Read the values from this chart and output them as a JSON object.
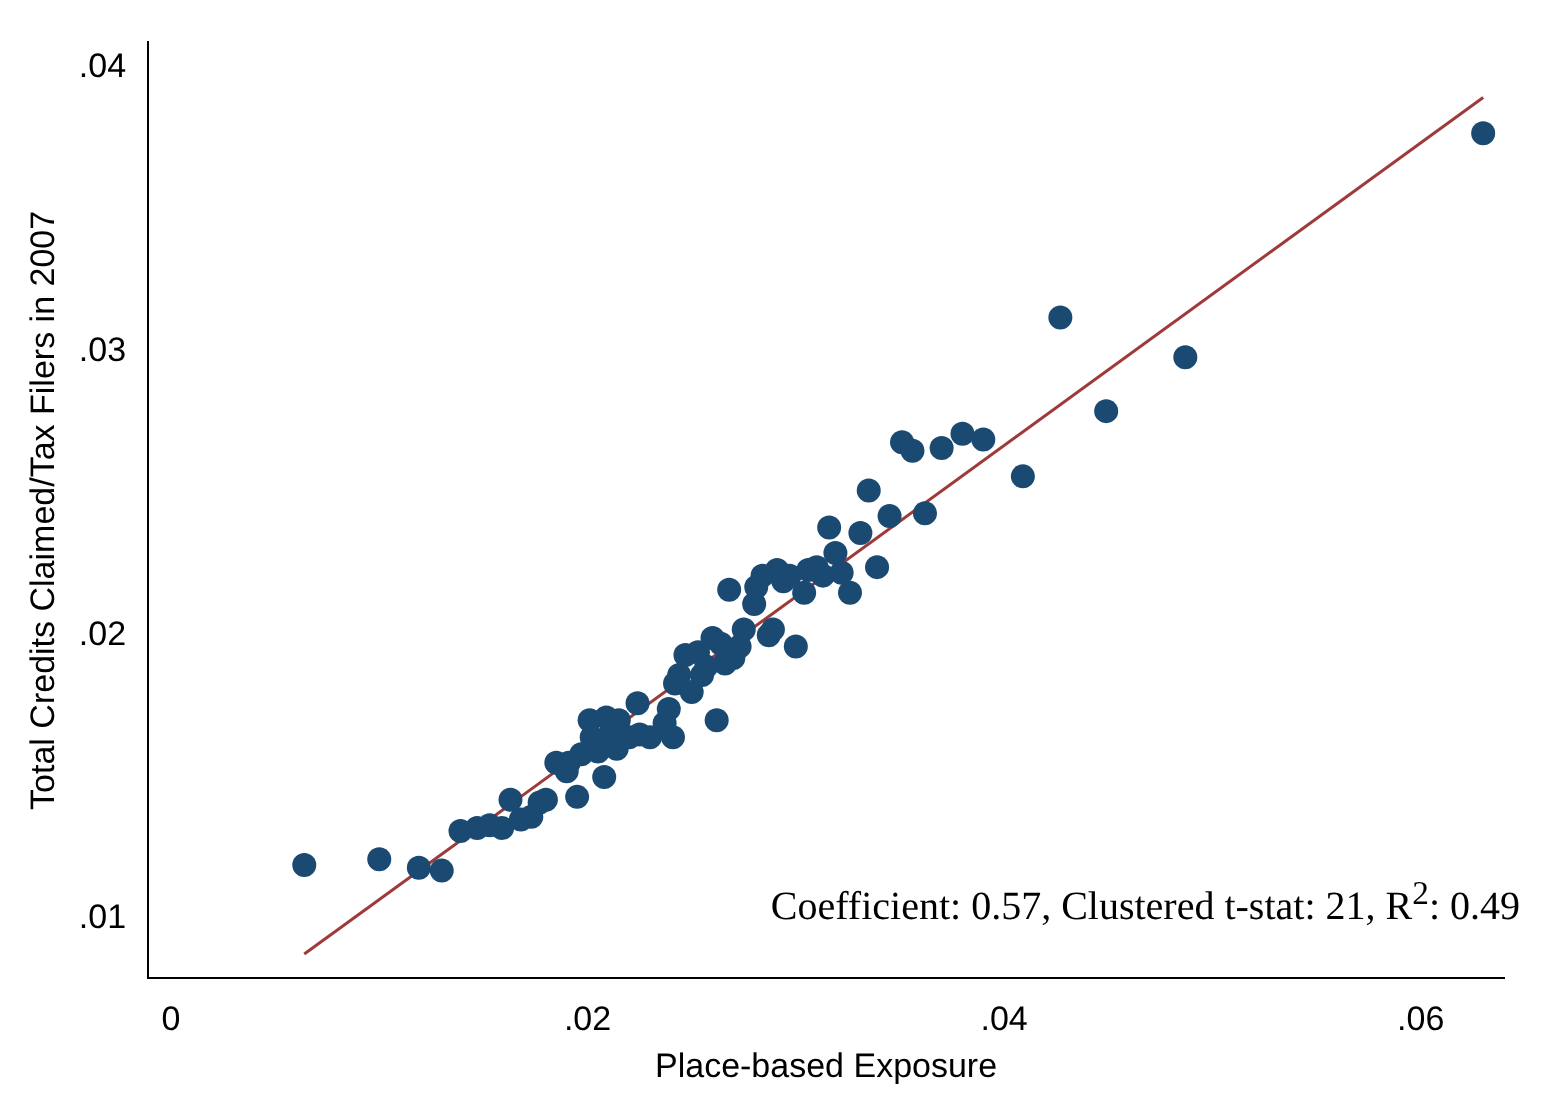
{
  "chart_data": {
    "type": "scatter",
    "xlabel": "Place-based Exposure",
    "ylabel": "Total Credits Claimed/Tax Filers in 2007",
    "xlim": [
      -0.0011,
      0.064
    ],
    "ylim": [
      0.0079,
      0.0409
    ],
    "xticks": [
      0,
      {
        "value": 0.02,
        "label": ".02"
      },
      {
        "value": 0.04,
        "label": ".04"
      },
      {
        "value": 0.06,
        "label": ".06"
      }
    ],
    "yticks": [
      {
        "value": 0.01,
        "label": ".01"
      },
      {
        "value": 0.02,
        "label": ".02"
      },
      {
        "value": 0.03,
        "label": ".03"
      },
      {
        "value": 0.04,
        "label": ".04"
      }
    ],
    "grid": false,
    "legend": false,
    "marker": "circle",
    "annotations": [
      "Coefficient: 0.57, Clustered t-stat: 21, R$^{2}$: 0.49"
    ],
    "series": [
      {
        "type": "scatter",
        "color": "#1a4a72",
        "x": [
          0.0064,
          0.01,
          0.0119,
          0.013,
          0.0139,
          0.0147,
          0.0153,
          0.0159,
          0.0163,
          0.0168,
          0.0173,
          0.0177,
          0.018,
          0.0185,
          0.019,
          0.0195,
          0.0191,
          0.0197,
          0.0201,
          0.0202,
          0.0205,
          0.0208,
          0.0209,
          0.0211,
          0.0215,
          0.0214,
          0.022,
          0.0224,
          0.0225,
          0.023,
          0.0237,
          0.0239,
          0.0241,
          0.0242,
          0.0244,
          0.0247,
          0.025,
          0.0253,
          0.0255,
          0.0257,
          0.026,
          0.0262,
          0.0264,
          0.0266,
          0.027,
          0.0268,
          0.0273,
          0.0275,
          0.028,
          0.0281,
          0.0284,
          0.0287,
          0.0289,
          0.0291,
          0.0294,
          0.0297,
          0.03,
          0.0304,
          0.0306,
          0.031,
          0.0313,
          0.0316,
          0.0319,
          0.0322,
          0.0326,
          0.0331,
          0.0335,
          0.0339,
          0.0345,
          0.0351,
          0.0356,
          0.0362,
          0.037,
          0.038,
          0.039,
          0.0409,
          0.0427,
          0.0449,
          0.0487,
          0.063
        ],
        "values": [
          0.0119,
          0.0121,
          0.0118,
          0.0117,
          0.0131,
          0.0132,
          0.0133,
          0.0132,
          0.0142,
          0.0135,
          0.0136,
          0.0141,
          0.0142,
          0.0155,
          0.0152,
          0.0143,
          0.0155,
          0.0158,
          0.017,
          0.0164,
          0.0159,
          0.015,
          0.0171,
          0.0165,
          0.017,
          0.016,
          0.0164,
          0.0176,
          0.0165,
          0.0164,
          0.0169,
          0.0174,
          0.0164,
          0.0183,
          0.0186,
          0.0193,
          0.018,
          0.0194,
          0.0186,
          0.0189,
          0.0199,
          0.017,
          0.0197,
          0.019,
          0.0192,
          0.0216,
          0.0196,
          0.0202,
          0.0211,
          0.0217,
          0.0221,
          0.02,
          0.0202,
          0.0223,
          0.0219,
          0.0221,
          0.0196,
          0.0215,
          0.0223,
          0.0224,
          0.0221,
          0.0238,
          0.0229,
          0.0222,
          0.0215,
          0.0236,
          0.0251,
          0.0224,
          0.0242,
          0.0268,
          0.0265,
          0.0243,
          0.0266,
          0.0271,
          0.0269,
          0.0256,
          0.0312,
          0.0279,
          0.0298,
          0.0377
        ]
      },
      {
        "type": "line",
        "color": "#9e3a3a",
        "marker": "none",
        "line_style": "solid",
        "x": [
          0.0064,
          0.063
        ],
        "values": [
          0.00876,
          0.03896
        ]
      }
    ]
  }
}
